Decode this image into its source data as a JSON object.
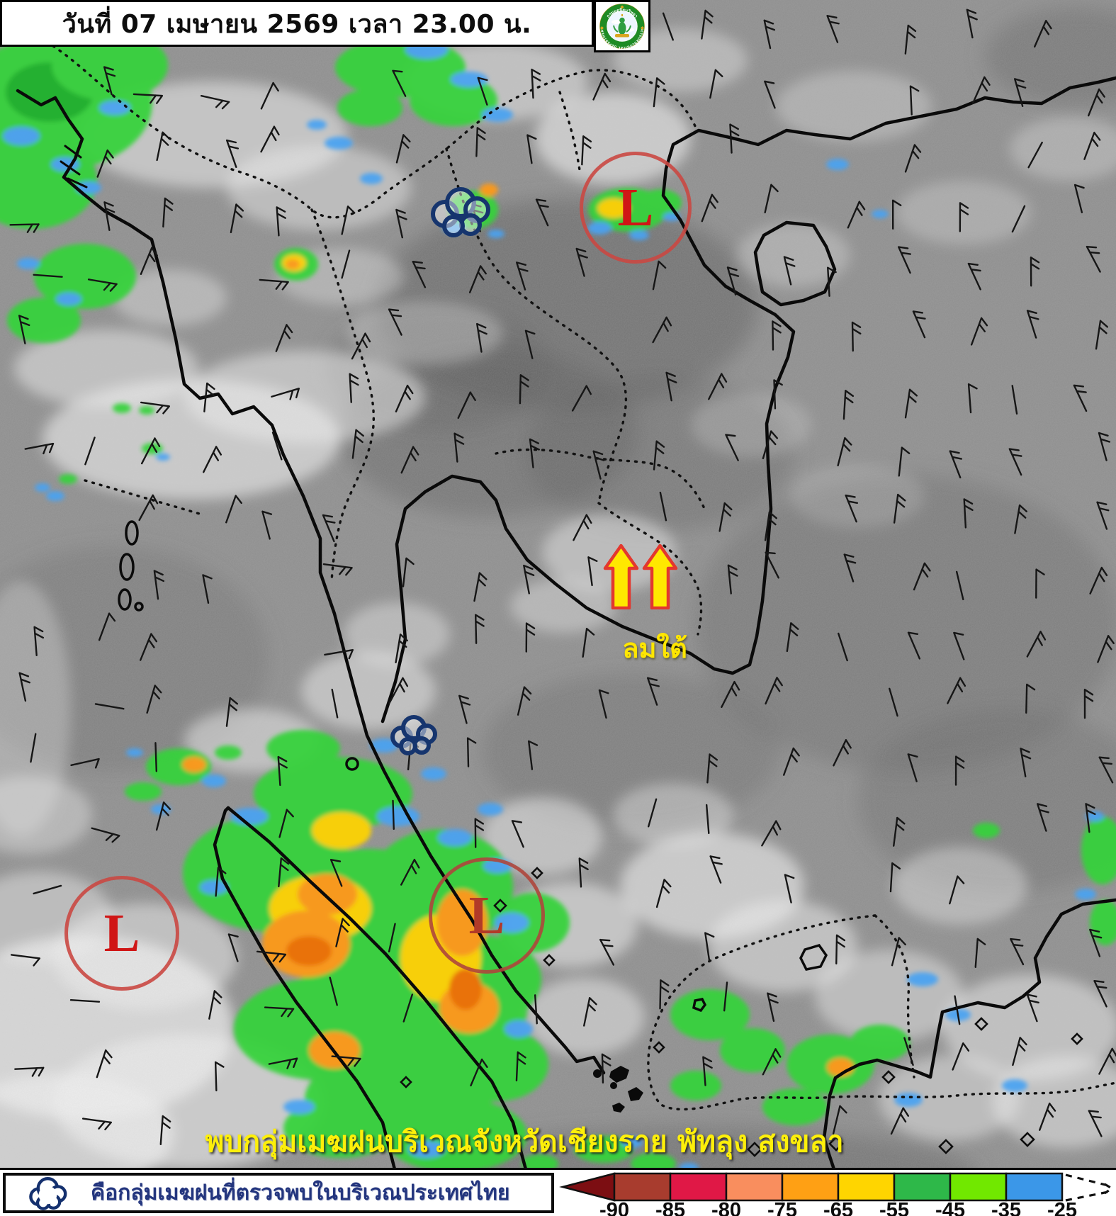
{
  "header": {
    "title": "วันที่ 07 เมษายน 2569 เวลา 23.00 น.",
    "logo": {
      "name": "Thai Meteorological Department seal",
      "ring_text_top": "กรมอุตุนิยมวิทยา",
      "ring_text_bottom": "METEOROLOGICAL DEPARTMENT"
    }
  },
  "map": {
    "south_wind_label": "ลมใต้",
    "alert_text": "พบกลุ่มเมฆฝนบริเวณจังหวัดเชียงราย พัทลุง สงขลา",
    "low_markers": [
      {
        "label": "L",
        "color": "#d01616",
        "circle_color": "rgba(202,72,66,0.9)"
      },
      {
        "label": "L",
        "color": "#d01616",
        "circle_color": "rgba(202,72,66,0.9)"
      },
      {
        "label": "L",
        "color": "#b23a28",
        "circle_color": "rgba(174,70,60,0.9)"
      }
    ]
  },
  "legend": {
    "cloud_text": "คือกลุ่มเมฆฝนที่ตรวจพบในบริเวณประเทศไทย",
    "scale": {
      "labels": [
        "-90",
        "-85",
        "-80",
        "-75",
        "-65",
        "-55",
        "-45",
        "-35",
        "-25"
      ],
      "colors": [
        "#a83c2e",
        "#e01846",
        "#f98e5e",
        "#ffa014",
        "#ffd500",
        "#2eb849",
        "#71e800",
        "#3b97e8"
      ],
      "arrow_color": "#7c0e12"
    }
  },
  "colors": {
    "annotation_yellow": "#ffe600",
    "alert_yellow": "#fdef0a",
    "legend_text_blue": "#23357e",
    "low_red": "#c0392b"
  }
}
